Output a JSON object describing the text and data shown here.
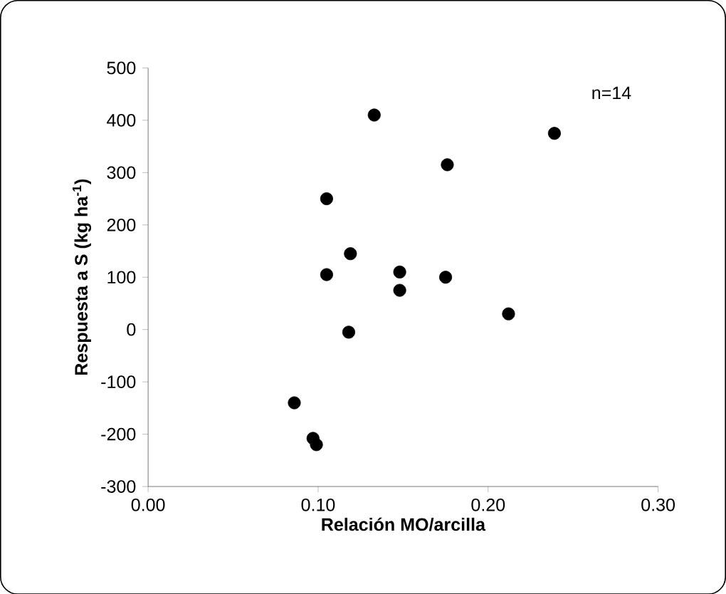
{
  "chart_data": {
    "type": "scatter",
    "xlabel": "Relación MO/arcilla",
    "ylabel": "Respuesta a S (kg ha$^{-1}$)",
    "annotations": [
      "n=14"
    ],
    "x": [
      0.133,
      0.239,
      0.176,
      0.105,
      0.119,
      0.105,
      0.148,
      0.148,
      0.175,
      0.212,
      0.118,
      0.086,
      0.097,
      0.099
    ],
    "values": [
      410,
      375,
      315,
      250,
      145,
      105,
      110,
      75,
      100,
      30,
      -5,
      -140,
      -208,
      -220
    ],
    "color": "#000000",
    "marker": "circle",
    "xlim": [
      0,
      0.3
    ],
    "ylim": [
      -300,
      500
    ],
    "xticks": [
      {
        "value": 0,
        "label": "0.00"
      },
      {
        "value": 0.1,
        "label": "0.10"
      },
      {
        "value": 0.2,
        "label": "0.20"
      },
      {
        "value": 0.3,
        "label": "0.30"
      }
    ],
    "yticks": [
      -300,
      -200,
      -100,
      0,
      100,
      200,
      300,
      400,
      500
    ]
  }
}
